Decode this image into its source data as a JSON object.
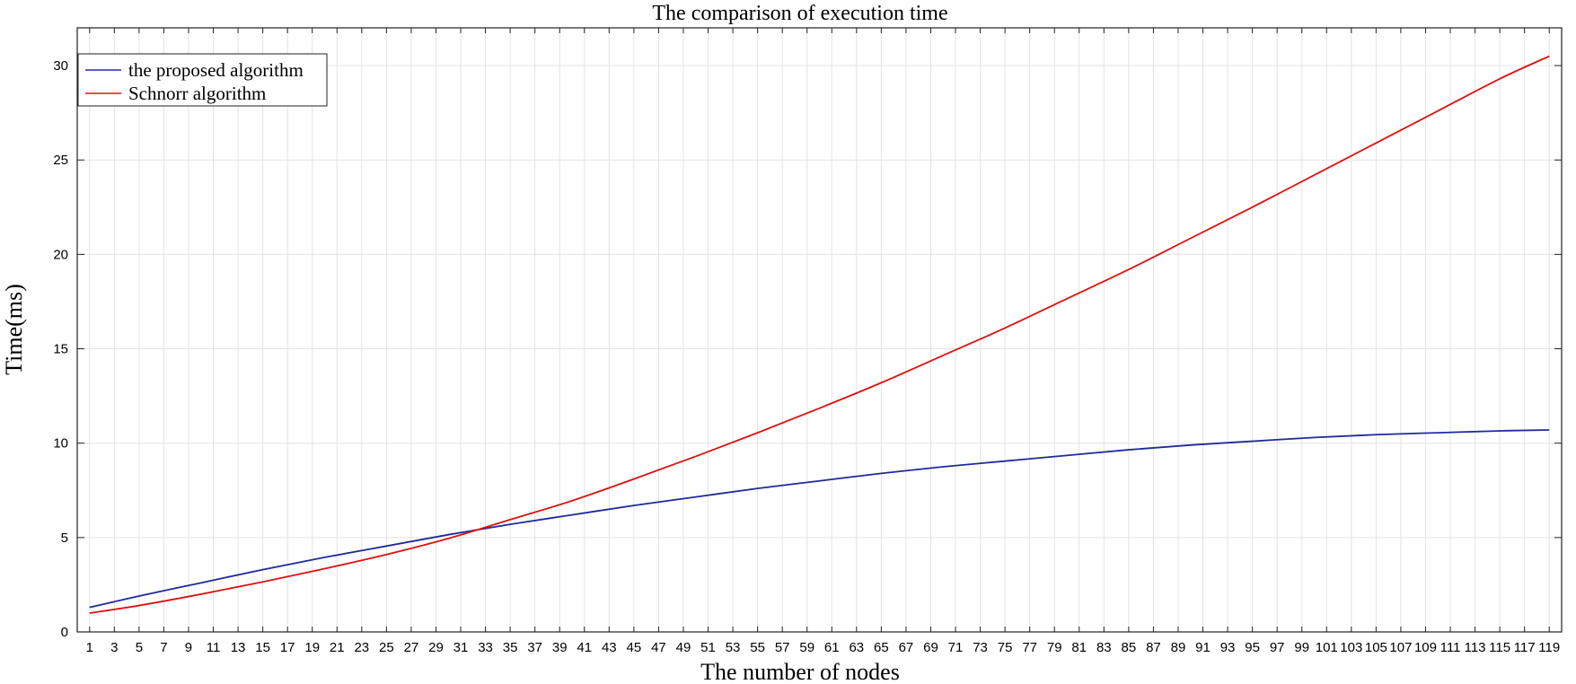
{
  "chart_data": {
    "type": "line",
    "title": "The comparison of execution time",
    "xlabel": "The number of nodes",
    "ylabel": "Time(ms)",
    "xlim": [
      0,
      120
    ],
    "ylim": [
      0,
      32
    ],
    "x_ticks": [
      1,
      3,
      5,
      7,
      9,
      11,
      13,
      15,
      17,
      19,
      21,
      23,
      25,
      27,
      29,
      31,
      33,
      35,
      37,
      39,
      41,
      43,
      45,
      47,
      49,
      51,
      53,
      55,
      57,
      59,
      61,
      63,
      65,
      67,
      69,
      71,
      73,
      75,
      77,
      79,
      81,
      83,
      85,
      87,
      89,
      91,
      93,
      95,
      97,
      99,
      101,
      103,
      105,
      107,
      109,
      111,
      113,
      115,
      117,
      119
    ],
    "y_ticks": [
      0,
      5,
      10,
      15,
      20,
      25,
      30
    ],
    "grid": true,
    "legend_position": "top-left",
    "series": [
      {
        "name": "the proposed algorithm",
        "color": "#1f2a9c",
        "points": [
          [
            1,
            1.3
          ],
          [
            5,
            1.9
          ],
          [
            10,
            2.6
          ],
          [
            15,
            3.3
          ],
          [
            20,
            3.95
          ],
          [
            25,
            4.55
          ],
          [
            30,
            5.15
          ],
          [
            35,
            5.7
          ],
          [
            40,
            6.2
          ],
          [
            45,
            6.7
          ],
          [
            50,
            7.15
          ],
          [
            55,
            7.6
          ],
          [
            60,
            8.0
          ],
          [
            65,
            8.4
          ],
          [
            70,
            8.75
          ],
          [
            75,
            9.05
          ],
          [
            80,
            9.35
          ],
          [
            85,
            9.65
          ],
          [
            90,
            9.9
          ],
          [
            95,
            10.1
          ],
          [
            100,
            10.3
          ],
          [
            105,
            10.45
          ],
          [
            110,
            10.55
          ],
          [
            115,
            10.65
          ],
          [
            119,
            10.7
          ]
        ]
      },
      {
        "name": "Schnorr algorithm",
        "color": "#e01010",
        "points": [
          [
            1,
            1.0
          ],
          [
            5,
            1.4
          ],
          [
            10,
            2.0
          ],
          [
            15,
            2.65
          ],
          [
            20,
            3.35
          ],
          [
            25,
            4.1
          ],
          [
            30,
            4.95
          ],
          [
            35,
            5.95
          ],
          [
            40,
            6.95
          ],
          [
            45,
            8.1
          ],
          [
            50,
            9.3
          ],
          [
            55,
            10.55
          ],
          [
            60,
            11.85
          ],
          [
            65,
            13.2
          ],
          [
            70,
            14.65
          ],
          [
            75,
            16.1
          ],
          [
            80,
            17.65
          ],
          [
            85,
            19.2
          ],
          [
            90,
            20.85
          ],
          [
            95,
            22.5
          ],
          [
            100,
            24.2
          ],
          [
            105,
            25.9
          ],
          [
            110,
            27.6
          ],
          [
            115,
            29.3
          ],
          [
            119,
            30.5
          ]
        ]
      }
    ]
  }
}
